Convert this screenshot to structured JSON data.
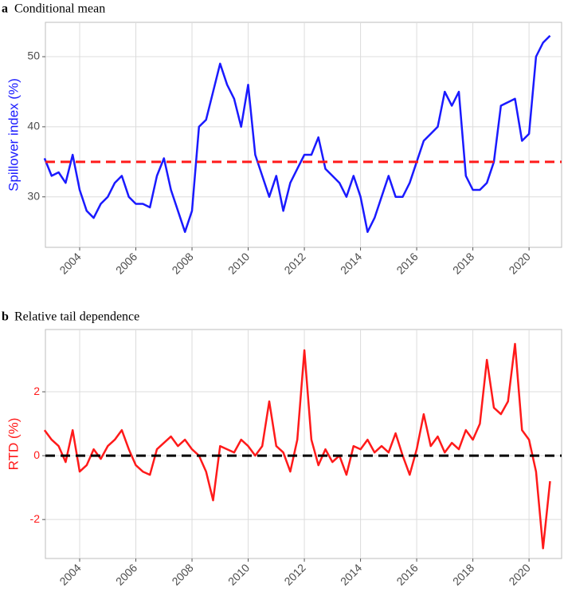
{
  "chart_data": [
    {
      "type": "line",
      "label": "a",
      "title": "Conditional mean",
      "y_label": "Spillover index (%)",
      "label_color": "#1a1aff",
      "xlim": [
        2002.78,
        2021.16
      ],
      "xticks": [
        2004,
        2006,
        2008,
        2010,
        2012,
        2014,
        2016,
        2018,
        2020
      ],
      "ylim": [
        22.8,
        54.9
      ],
      "yticks": [
        30,
        40,
        50
      ],
      "grid": true,
      "hline": 35,
      "hline_color": "#ff1a1a",
      "x": [
        2002.75,
        2003,
        2003.25,
        2003.5,
        2003.75,
        2004,
        2004.25,
        2004.5,
        2004.75,
        2005,
        2005.25,
        2005.5,
        2005.75,
        2006,
        2006.25,
        2006.5,
        2006.75,
        2007,
        2007.25,
        2007.5,
        2007.75,
        2008,
        2008.25,
        2008.5,
        2008.75,
        2009,
        2009.25,
        2009.5,
        2009.75,
        2010,
        2010.25,
        2010.5,
        2010.75,
        2011,
        2011.25,
        2011.5,
        2011.75,
        2012,
        2012.25,
        2012.5,
        2012.75,
        2013,
        2013.25,
        2013.5,
        2013.75,
        2014,
        2014.25,
        2014.5,
        2014.75,
        2015,
        2015.25,
        2015.5,
        2015.75,
        2016,
        2016.25,
        2016.5,
        2016.75,
        2017,
        2017.25,
        2017.5,
        2017.75,
        2018,
        2018.25,
        2018.5,
        2018.75,
        2019,
        2019.25,
        2019.5,
        2019.75,
        2020,
        2020.25,
        2020.5,
        2020.75
      ],
      "series": [
        {
          "color": "#1a1aff",
          "values": [
            35.5,
            33,
            33.5,
            32,
            36,
            31,
            28,
            27,
            29,
            30,
            32,
            33,
            30,
            29,
            29,
            28.5,
            33,
            35.5,
            31,
            28,
            25,
            28,
            40,
            41,
            45,
            49,
            46,
            44,
            40,
            46,
            36,
            33,
            30,
            33,
            28,
            32,
            34,
            36,
            36,
            38.5,
            34,
            33,
            32,
            30,
            33,
            30,
            25,
            27,
            30,
            33,
            30,
            30,
            32,
            35,
            38,
            39,
            40,
            45,
            43,
            45,
            33,
            31,
            31,
            32,
            35,
            43,
            43.5,
            44,
            38,
            39,
            50,
            52,
            53
          ]
        }
      ]
    },
    {
      "type": "line",
      "label": "b",
      "title": "Relative tail dependence",
      "y_label": "RTD (%)",
      "label_color": "#ff1a1a",
      "xlim": [
        2002.78,
        2021.16
      ],
      "xticks": [
        2004,
        2006,
        2008,
        2010,
        2012,
        2014,
        2016,
        2018,
        2020
      ],
      "ylim": [
        -3.22,
        3.95
      ],
      "yticks": [
        -2,
        0,
        2
      ],
      "grid": true,
      "hline": 0,
      "hline_color": "#000000",
      "x": [
        2002.75,
        2003,
        2003.25,
        2003.5,
        2003.75,
        2004,
        2004.25,
        2004.5,
        2004.75,
        2005,
        2005.25,
        2005.5,
        2005.75,
        2006,
        2006.25,
        2006.5,
        2006.75,
        2007,
        2007.25,
        2007.5,
        2007.75,
        2008,
        2008.25,
        2008.5,
        2008.75,
        2009,
        2009.25,
        2009.5,
        2009.75,
        2010,
        2010.25,
        2010.5,
        2010.75,
        2011,
        2011.25,
        2011.5,
        2011.75,
        2012,
        2012.25,
        2012.5,
        2012.75,
        2013,
        2013.25,
        2013.5,
        2013.75,
        2014,
        2014.25,
        2014.5,
        2014.75,
        2015,
        2015.25,
        2015.5,
        2015.75,
        2016,
        2016.25,
        2016.5,
        2016.75,
        2017,
        2017.25,
        2017.5,
        2017.75,
        2018,
        2018.25,
        2018.5,
        2018.75,
        2019,
        2019.25,
        2019.5,
        2019.75,
        2020,
        2020.25,
        2020.5,
        2020.75
      ],
      "series": [
        {
          "color": "#ff1a1a",
          "values": [
            0.8,
            0.5,
            0.3,
            -0.2,
            0.8,
            -0.5,
            -0.3,
            0.2,
            -0.1,
            0.3,
            0.5,
            0.8,
            0.2,
            -0.3,
            -0.5,
            -0.6,
            0.2,
            0.4,
            0.6,
            0.3,
            0.5,
            0.2,
            0.0,
            -0.5,
            -1.4,
            0.3,
            0.2,
            0.1,
            0.5,
            0.3,
            0.0,
            0.3,
            1.7,
            0.3,
            0.1,
            -0.5,
            0.5,
            3.3,
            0.5,
            -0.3,
            0.2,
            -0.2,
            0.0,
            -0.6,
            0.3,
            0.2,
            0.5,
            0.1,
            0.3,
            0.1,
            0.7,
            0.0,
            -0.6,
            0.2,
            1.3,
            0.3,
            0.6,
            0.1,
            0.4,
            0.2,
            0.8,
            0.5,
            1.0,
            3.0,
            1.5,
            1.3,
            1.7,
            3.5,
            0.8,
            0.5,
            -0.5,
            -2.9,
            -0.8
          ]
        }
      ]
    }
  ]
}
